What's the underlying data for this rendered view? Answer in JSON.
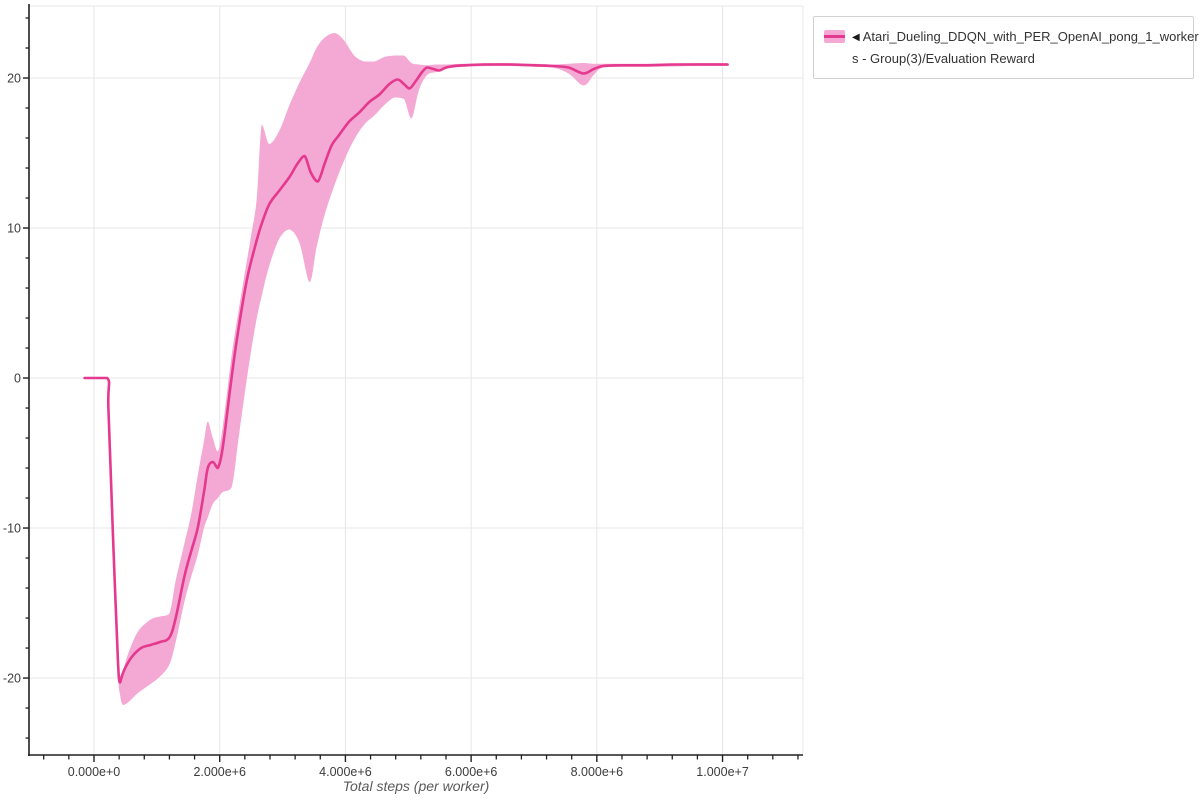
{
  "legend": {
    "triangle": "◀",
    "line1": "Atari_Dueling_DDQN_with_PER_OpenAI_pong_1_worker",
    "line2": "s - Group(3)/Evaluation Reward"
  },
  "chart_data": {
    "type": "line",
    "title": "",
    "xlabel": "Total steps (per worker)",
    "ylabel": "",
    "xlim": [
      -1034000,
      11280000
    ],
    "ylim": [
      -25.13,
      24.8
    ],
    "grid": true,
    "legend_position": "top-right",
    "x_axis": {
      "major_values": [
        0,
        2000000,
        4000000,
        6000000,
        8000000,
        10000000
      ],
      "major_labels": [
        "0.000e+0",
        "2.000e+6",
        "4.000e+6",
        "6.000e+6",
        "8.000e+6",
        "1.000e+7"
      ],
      "minor_step": 400000,
      "minor_range": [
        -800000,
        11200000
      ]
    },
    "y_axis": {
      "major_values": [
        -20,
        -10,
        0,
        10,
        20
      ],
      "major_labels": [
        "-20",
        "-10",
        "0",
        "10",
        "20"
      ],
      "minor_step": 2,
      "minor_range": [
        -24,
        24
      ]
    },
    "colors": {
      "grid": "#e7e7e7",
      "axis": "#212121",
      "tick_label": "#3c3c3c",
      "axis_label": "#5a5a5a",
      "background": "#ffffff"
    },
    "series": [
      {
        "name": "Atari_Dueling_DDQN_with_PER_OpenAI_pong_1_workers - Group(3)/Evaluation Reward",
        "color": "#e5388f",
        "band_color": "#f4a9d4",
        "x": [
          -150000,
          210000,
          230000,
          300000,
          380000,
          410000,
          450000,
          500000,
          600000,
          750000,
          900000,
          1050000,
          1200000,
          1300000,
          1440000,
          1550000,
          1650000,
          1750000,
          1810000,
          1890000,
          1970000,
          2050000,
          2160000,
          2250000,
          2350000,
          2450000,
          2590000,
          2670000,
          2790000,
          2950000,
          3110000,
          3240000,
          3350000,
          3450000,
          3560000,
          3670000,
          3780000,
          3900000,
          4060000,
          4220000,
          4380000,
          4540000,
          4700000,
          4830000,
          4930000,
          5020000,
          5120000,
          5220000,
          5300000,
          5400000,
          5490000,
          5600000,
          5730000,
          5900000,
          6200000,
          6600000,
          7000000,
          7300000,
          7550000,
          7790000,
          7950000,
          8100000,
          8400000,
          8800000,
          9200000,
          9600000,
          10080000
        ],
        "y": [
          0,
          0,
          -2.0,
          -10.2,
          -18.8,
          -20.3,
          -19.8,
          -19.3,
          -18.6,
          -18.0,
          -17.8,
          -17.6,
          -17.3,
          -16.0,
          -13.2,
          -11.5,
          -10.0,
          -7.6,
          -6.0,
          -5.6,
          -6.0,
          -4.6,
          -0.9,
          1.9,
          4.6,
          6.9,
          9.2,
          10.3,
          11.6,
          12.5,
          13.4,
          14.3,
          14.8,
          13.7,
          13.1,
          14.3,
          15.5,
          16.2,
          17.1,
          17.7,
          18.4,
          18.9,
          19.6,
          19.9,
          19.6,
          19.3,
          19.8,
          20.4,
          20.7,
          20.6,
          20.5,
          20.7,
          20.8,
          20.85,
          20.9,
          20.9,
          20.85,
          20.8,
          20.7,
          20.3,
          20.6,
          20.8,
          20.85,
          20.85,
          20.9,
          20.9,
          20.9
        ],
        "band": {
          "x": [
            -150000,
            210000,
            230000,
            300000,
            380000,
            410000,
            460000,
            550000,
            700000,
            900000,
            1050000,
            1200000,
            1300000,
            1440000,
            1550000,
            1650000,
            1750000,
            1810000,
            1890000,
            1970000,
            2050000,
            2190000,
            2300000,
            2400000,
            2500000,
            2590000,
            2670000,
            2790000,
            2950000,
            3110000,
            3270000,
            3430000,
            3540000,
            3670000,
            3830000,
            3980000,
            4140000,
            4300000,
            4460000,
            4620000,
            4780000,
            4930000,
            5050000,
            5170000,
            5300000,
            5450000,
            5600000,
            5900000,
            6500000,
            7000000,
            7300000,
            7550000,
            7790000,
            7950000,
            8100000,
            8500000,
            9000000,
            9600000,
            10080000
          ],
          "lower": [
            0,
            0,
            -2.6,
            -10.8,
            -19.5,
            -21.0,
            -21.8,
            -21.6,
            -21.0,
            -20.4,
            -19.9,
            -19.1,
            -17.6,
            -14.9,
            -13.2,
            -11.8,
            -10.0,
            -9.3,
            -8.4,
            -8.0,
            -7.6,
            -7.3,
            -4.0,
            -1.0,
            1.8,
            4.0,
            5.5,
            7.5,
            9.3,
            9.9,
            9.0,
            6.4,
            8.7,
            10.9,
            12.9,
            14.5,
            15.9,
            16.9,
            17.5,
            18.2,
            18.7,
            18.6,
            17.3,
            19.2,
            20.2,
            20.4,
            20.6,
            20.75,
            20.8,
            20.75,
            20.7,
            20.3,
            19.5,
            20.2,
            20.7,
            20.75,
            20.75,
            20.8,
            20.8
          ],
          "upper": [
            0,
            0,
            -1.6,
            -9.6,
            -18.2,
            -19.9,
            -19.5,
            -18.3,
            -16.9,
            -16.1,
            -15.9,
            -15.7,
            -13.5,
            -11.0,
            -9.0,
            -6.5,
            -4.2,
            -2.9,
            -4.0,
            -4.9,
            -3.2,
            1.5,
            4.5,
            7.0,
            9.5,
            12.0,
            16.9,
            15.6,
            16.5,
            18.2,
            19.7,
            21.0,
            22.0,
            22.7,
            23.0,
            22.5,
            21.5,
            21.1,
            21.1,
            21.4,
            21.5,
            21.5,
            21.0,
            20.9,
            20.85,
            20.9,
            20.9,
            20.95,
            21.0,
            20.95,
            20.9,
            20.95,
            21.0,
            20.95,
            20.95,
            20.95,
            20.95,
            21.0,
            21.0
          ]
        }
      }
    ]
  }
}
